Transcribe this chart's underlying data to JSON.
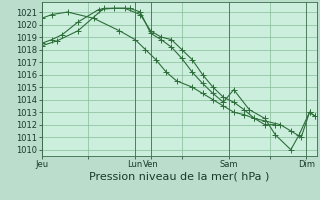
{
  "title": "",
  "xlabel": "Pression niveau de la mer( hPa )",
  "background_color": "#cceedd",
  "grid_color": "#88bb99",
  "line_color": "#2d6e3a",
  "ylim": [
    1009.5,
    1021.8
  ],
  "yticks": [
    1010,
    1011,
    1012,
    1013,
    1014,
    1015,
    1016,
    1017,
    1018,
    1019,
    1020,
    1021
  ],
  "xtick_labels": [
    "Jeu",
    "",
    "Lun",
    "Ven",
    "",
    "Sam",
    "",
    "Dim"
  ],
  "xtick_positions": [
    0,
    45,
    90,
    105,
    135,
    180,
    220,
    255
  ],
  "xlim": [
    0,
    265
  ],
  "vline_positions": [
    0,
    90,
    105,
    180,
    255
  ],
  "line1_x": [
    0,
    10,
    20,
    35,
    55,
    70,
    85,
    95,
    105,
    115,
    125,
    135,
    145,
    155,
    165,
    175,
    185,
    200,
    215,
    225,
    240,
    248,
    258,
    263
  ],
  "line1_y": [
    1018.5,
    1018.8,
    1019.2,
    1020.2,
    1021.2,
    1021.3,
    1021.3,
    1021.0,
    1019.3,
    1018.8,
    1018.2,
    1017.3,
    1016.2,
    1015.3,
    1014.5,
    1013.8,
    1014.8,
    1013.2,
    1012.5,
    1011.2,
    1010.0,
    1011.2,
    1013.0,
    1012.7
  ],
  "line2_x": [
    0,
    10,
    25,
    50,
    75,
    90,
    100,
    110,
    120,
    130,
    145,
    155,
    165,
    175,
    185,
    195,
    205,
    215,
    230,
    240,
    250,
    258,
    263
  ],
  "line2_y": [
    1020.5,
    1020.8,
    1021.0,
    1020.5,
    1019.5,
    1018.8,
    1018.0,
    1017.2,
    1016.2,
    1015.5,
    1015.0,
    1014.5,
    1014.0,
    1013.5,
    1013.0,
    1012.8,
    1012.5,
    1012.3,
    1012.0,
    1011.5,
    1011.0,
    1013.0,
    1012.7
  ],
  "line3_x": [
    0,
    15,
    35,
    60,
    80,
    95,
    105,
    115,
    125,
    135,
    145,
    155,
    165,
    175,
    185,
    195,
    205,
    215,
    225
  ],
  "line3_y": [
    1018.3,
    1018.7,
    1019.5,
    1021.3,
    1021.3,
    1020.8,
    1019.5,
    1019.0,
    1018.8,
    1018.0,
    1017.2,
    1016.0,
    1015.0,
    1014.2,
    1013.8,
    1013.2,
    1012.5,
    1012.0,
    1012.0
  ],
  "xlabel_fontsize": 8,
  "tick_fontsize": 6,
  "marker_size": 2.0,
  "line_width": 0.8,
  "fig_bg": "#bbddcc"
}
